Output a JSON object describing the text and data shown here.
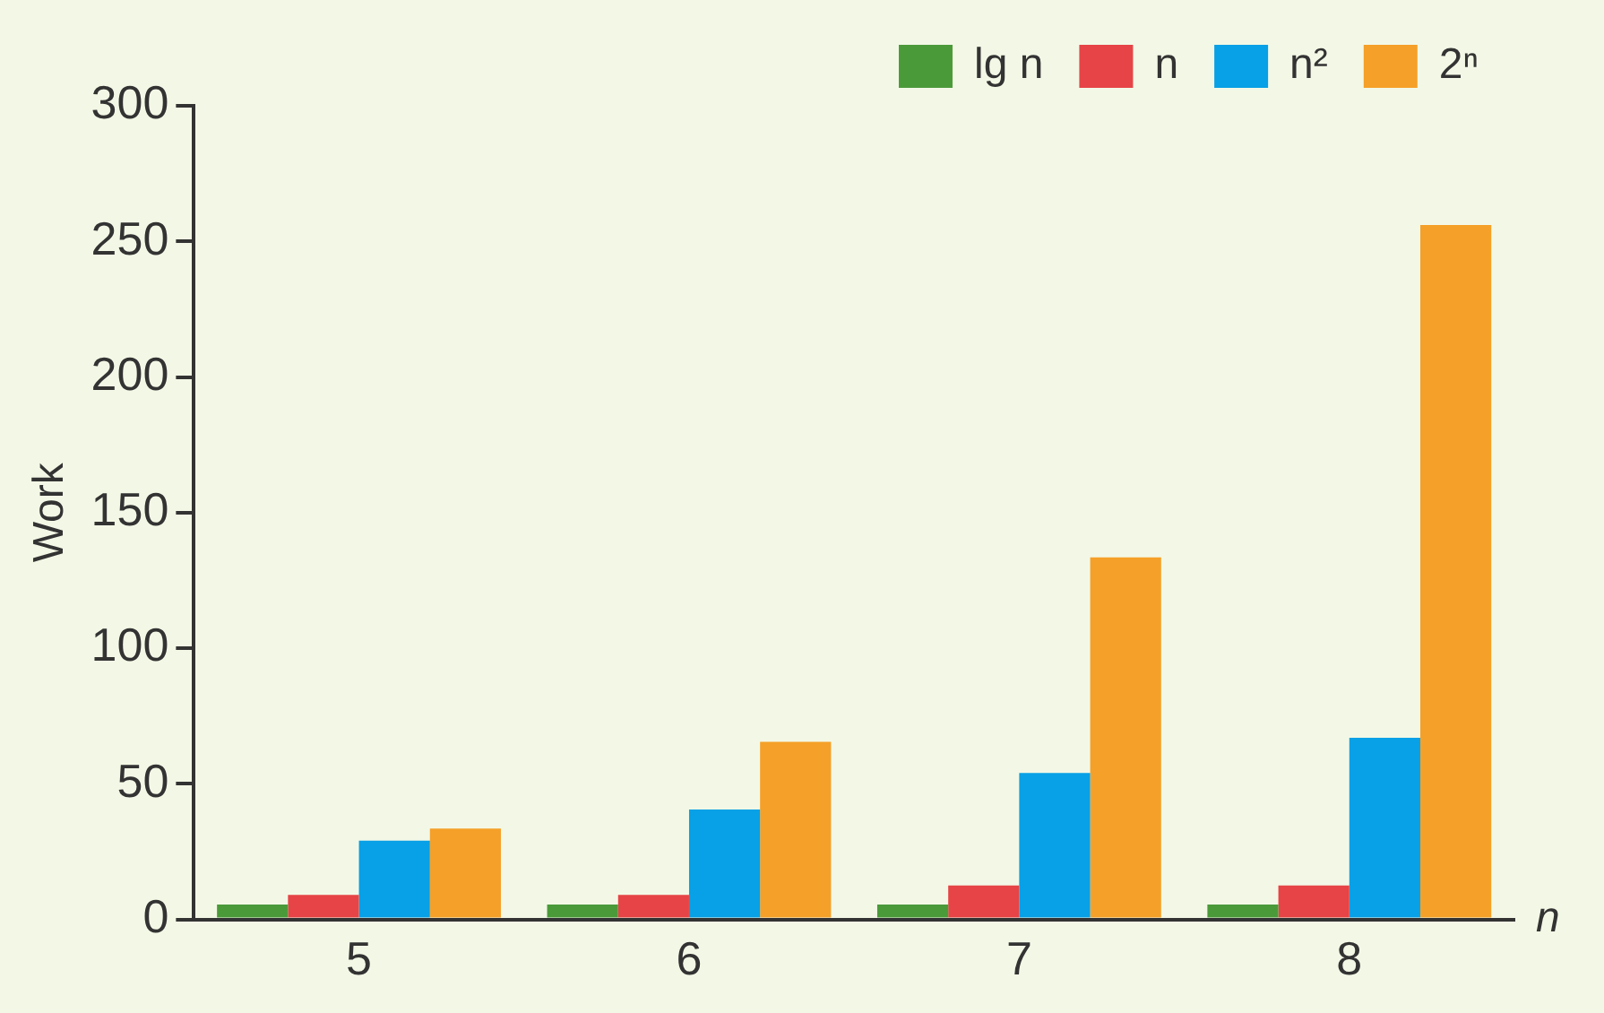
{
  "chart_data": {
    "type": "bar",
    "xlabel": "n",
    "ylabel": "Work",
    "categories": [
      "5",
      "6",
      "7",
      "8"
    ],
    "series": [
      {
        "name": "lg n",
        "color": "#4b9a3a",
        "values": [
          5.5,
          5.5,
          5.5,
          5.5
        ]
      },
      {
        "name": "n",
        "color": "#e64446",
        "values": [
          9,
          9,
          12.5,
          12.5
        ]
      },
      {
        "name": "n²",
        "color": "#08a0e6",
        "values": [
          29,
          40.5,
          54,
          67
        ]
      },
      {
        "name": "2ⁿ",
        "color": "#f5a028",
        "values": [
          33.5,
          65.5,
          133.5,
          256
        ]
      }
    ],
    "ylim": [
      0,
      300
    ],
    "yticks": [
      0,
      50,
      100,
      150,
      200,
      250,
      300
    ],
    "grid": false,
    "legend": "top right"
  }
}
